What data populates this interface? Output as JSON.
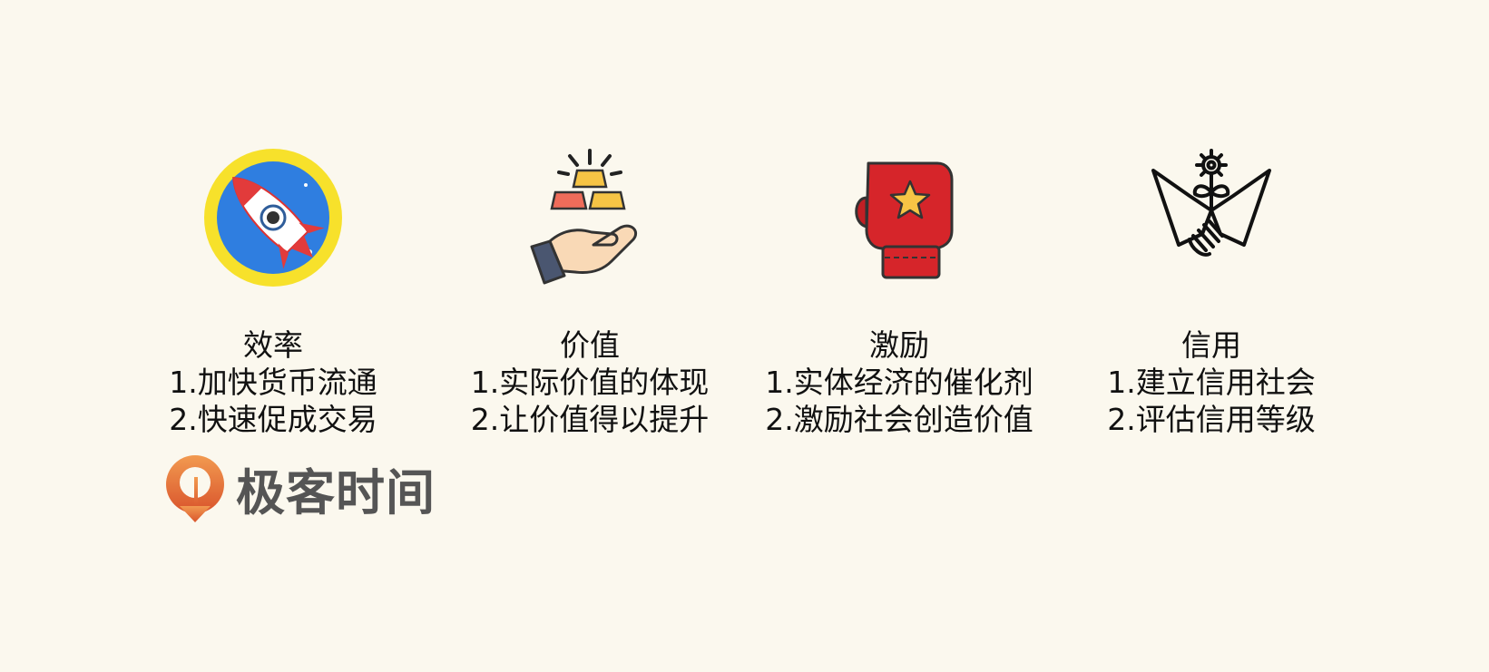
{
  "items": [
    {
      "icon": "rocket-icon",
      "title": "效率",
      "line1": "1.加快货币流通",
      "line2": "2.快速促成交易"
    },
    {
      "icon": "hand-gold-bars-icon",
      "title": "价值",
      "line1": "1.实际价值的体现",
      "line2": "2.让价值得以提升"
    },
    {
      "icon": "boxing-glove-icon",
      "title": "激励",
      "line1": "1.实体经济的催化剂",
      "line2": "2.激励社会创造价值"
    },
    {
      "icon": "handshake-gear-icon",
      "title": "信用",
      "line1": "1.建立信用社会",
      "line2": "2.评估信用等级"
    }
  ],
  "logo": {
    "icon": "geektime-logo-icon",
    "text": "极客时间"
  },
  "colors": {
    "background": "#fbf8ee",
    "logo_orange": "#e8733a",
    "glove_red": "#d6252a",
    "rocket_blue": "#2f7ee0",
    "rocket_yellow": "#f7e12b"
  }
}
